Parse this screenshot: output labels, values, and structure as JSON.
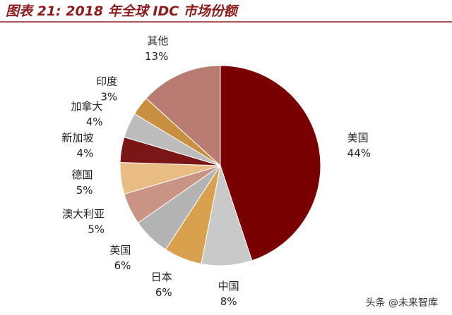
{
  "chart_data": {
    "type": "pie",
    "title": "图表 21: 2018 年全球 IDC 市场份额",
    "categories": [
      "美国",
      "中国",
      "日本",
      "英国",
      "澳大利亚",
      "德国",
      "新加坡",
      "加拿大",
      "印度",
      "其他"
    ],
    "values": [
      44,
      8,
      6,
      6,
      5,
      5,
      4,
      4,
      3,
      13
    ],
    "value_labels": [
      "44%",
      "8%",
      "6%",
      "6%",
      "5%",
      "5%",
      "4%",
      "4%",
      "3%",
      "13%"
    ],
    "colors": [
      "#780000",
      "#c9c9c9",
      "#d9a04e",
      "#b3b3b3",
      "#c99484",
      "#e9bc84",
      "#7a1616",
      "#bcbcbc",
      "#c8903e",
      "#b87c72"
    ]
  },
  "footer": "头条 @未来智库"
}
